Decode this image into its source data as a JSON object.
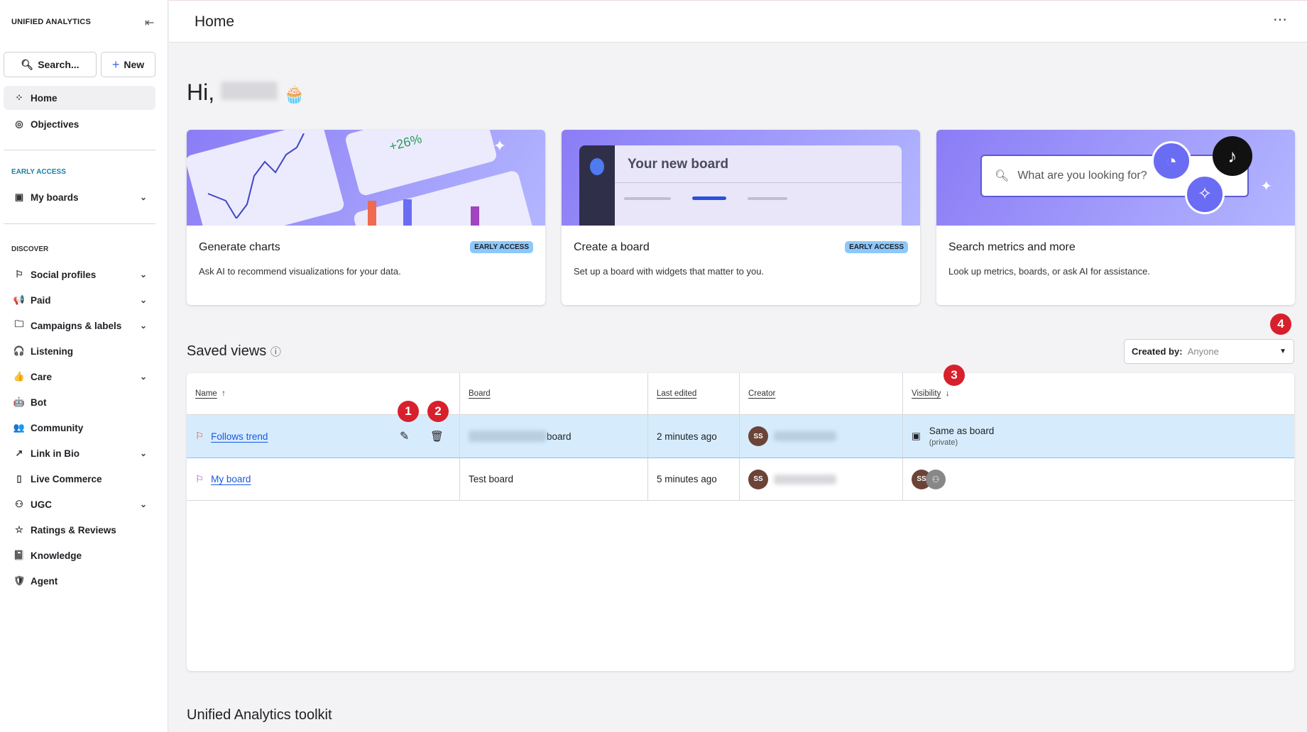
{
  "sidebar": {
    "brand": "UNIFIED ANALYTICS",
    "search": "Search...",
    "new": "New",
    "top": [
      {
        "label": "Home",
        "icon": "grid-icon"
      },
      {
        "label": "Objectives",
        "icon": "target-icon"
      }
    ],
    "early_access_title": "EARLY ACCESS",
    "early": [
      {
        "label": "My boards"
      }
    ],
    "discover_title": "DISCOVER",
    "discover": [
      {
        "label": "Social profiles",
        "chev": true,
        "icon": "⚐"
      },
      {
        "label": "Paid",
        "chev": true,
        "icon": "📢"
      },
      {
        "label": "Campaigns & labels",
        "chev": true,
        "icon": "🗀"
      },
      {
        "label": "Listening",
        "chev": false,
        "icon": "🎧"
      },
      {
        "label": "Care",
        "chev": true,
        "icon": "👍"
      },
      {
        "label": "Bot",
        "chev": false,
        "icon": "🤖"
      },
      {
        "label": "Community",
        "chev": false,
        "icon": "👥"
      },
      {
        "label": "Link in Bio",
        "chev": true,
        "icon": "↗"
      },
      {
        "label": "Live Commerce",
        "chev": false,
        "icon": "▯"
      },
      {
        "label": "UGC",
        "chev": true,
        "icon": "⚇"
      },
      {
        "label": "Ratings & Reviews",
        "chev": false,
        "icon": "☆"
      },
      {
        "label": "Knowledge",
        "chev": false,
        "icon": "📓"
      },
      {
        "label": "Agent",
        "chev": false,
        "icon": "🛡"
      }
    ]
  },
  "header": {
    "title": "Home"
  },
  "greeting": "Hi,",
  "cards": [
    {
      "title": "Generate charts",
      "desc": "Ask AI to recommend visualizations for your data.",
      "badge": "EARLY ACCESS",
      "art": "+26%"
    },
    {
      "title": "Create a board",
      "desc": "Set up a board with widgets that matter to you.",
      "badge": "EARLY ACCESS",
      "art": "Your new board"
    },
    {
      "title": "Search metrics and more",
      "desc": "Look up metrics, boards, or ask AI for assistance.",
      "art": "What are you looking for?"
    }
  ],
  "saved_views": {
    "title": "Saved views",
    "filter_label": "Created by:",
    "filter_value": "Anyone",
    "columns": [
      "Name",
      "Board",
      "Last edited",
      "Creator",
      "Visibility"
    ],
    "rows": [
      {
        "name": "Follows trend",
        "board": "board",
        "edited": "2 minutes ago",
        "creator": "SS",
        "visibility": "Same as board",
        "visibility_sub": "(private)"
      },
      {
        "name": "My board",
        "board": "Test board",
        "edited": "5 minutes ago",
        "creator": "SS"
      }
    ]
  },
  "markers": [
    "1",
    "2",
    "3",
    "4"
  ],
  "toolkit_title": "Unified Analytics toolkit"
}
